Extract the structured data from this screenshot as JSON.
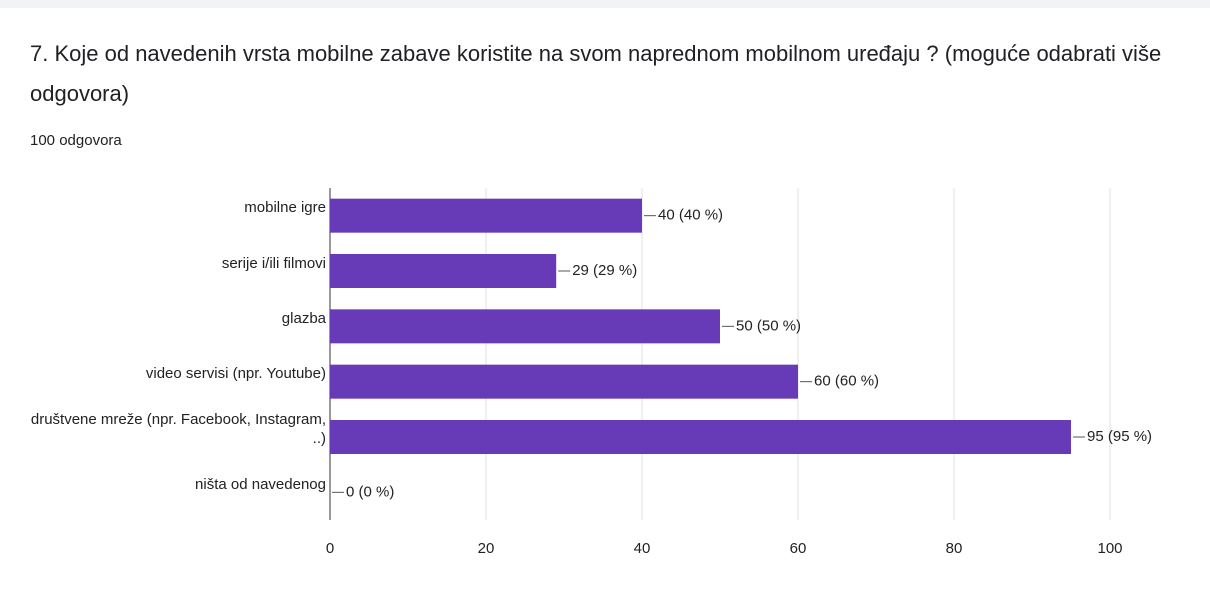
{
  "chart_data": {
    "type": "bar",
    "orientation": "horizontal",
    "title": "7. Koje od navedenih vrsta mobilne zabave koristite na svom naprednom mobilnom uređaju ? (moguće odabrati više odgovora)",
    "subtitle": "100 odgovora",
    "categories": [
      "mobilne igre",
      "serije i/ili filmovi",
      "glazba",
      "video servisi (npr. Youtube)",
      "društvene mreže (npr. Facebook, Instagram, ..)",
      "ništa od navedenog"
    ],
    "values": [
      40,
      29,
      50,
      60,
      95,
      0
    ],
    "value_labels": [
      "40 (40 %)",
      "29 (29 %)",
      "50 (50 %)",
      "60 (60 %)",
      "95 (95 %)",
      "0 (0 %)"
    ],
    "color": "#673ab7",
    "xlim": [
      0,
      100
    ],
    "xticks": [
      0,
      20,
      40,
      60,
      80,
      100
    ],
    "grid": true
  }
}
